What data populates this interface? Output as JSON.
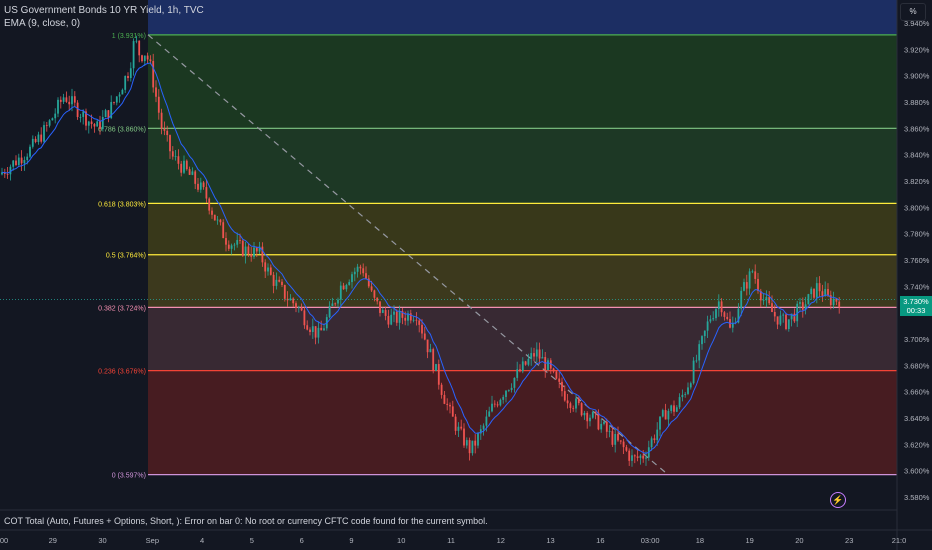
{
  "header": {
    "symbol_title": "US Government Bonds 10 YR Yield, 1h, TVC",
    "ema_label": "EMA (9, close, 0)"
  },
  "footer": {
    "indicator_message": "COT Total (Auto, Futures + Options, Short, ): Error on bar 0: No root or currency CFTC code found for the current symbol."
  },
  "price_scale": {
    "unit_label": "%"
  },
  "last_price": {
    "value": "3.730%",
    "countdown": "00:33"
  },
  "icons": {
    "alert": "lightning-icon"
  },
  "colors": {
    "background": "#131722",
    "up": "#26a69a",
    "down": "#ef5350",
    "ema": "#2962ff",
    "last_price_tag": "#089981"
  },
  "chart_data": {
    "type": "candlestick",
    "title": "US Government Bonds 10 YR Yield, 1h, TVC",
    "y_unit": "%",
    "ylim": [
      3.57,
      3.945
    ],
    "y_ticks": [
      "3.940%",
      "3.920%",
      "3.900%",
      "3.880%",
      "3.860%",
      "3.840%",
      "3.820%",
      "3.800%",
      "3.780%",
      "3.760%",
      "3.740%",
      "3.720%",
      "3.700%",
      "3.680%",
      "3.660%",
      "3.640%",
      "3.620%",
      "3.600%",
      "3.580%"
    ],
    "x_ticks": [
      ":00",
      "29",
      "30",
      "Sep",
      "4",
      "5",
      "6",
      "9",
      "10",
      "11",
      "12",
      "13",
      "16",
      "03:00",
      "18",
      "19",
      "20",
      "23",
      "21:0"
    ],
    "fib_levels": [
      {
        "label": "1 (3.931%)",
        "value": 3.931,
        "color": "#4caf50"
      },
      {
        "label": "0.786 (3.860%)",
        "value": 3.86,
        "color": "#81c784"
      },
      {
        "label": "0.618 (3.803%)",
        "value": 3.803,
        "color": "#ffeb3b"
      },
      {
        "label": "0.5 (3.764%)",
        "value": 3.764,
        "color": "#ffeb3b"
      },
      {
        "label": "0.382 (3.724%)",
        "value": 3.724,
        "color": "#f48fb1"
      },
      {
        "label": "0.236 (3.676%)",
        "value": 3.676,
        "color": "#f44336"
      },
      {
        "label": "0 (3.597%)",
        "value": 3.597,
        "color": "#ce93d8"
      }
    ],
    "price_path": [
      [
        0,
        3.825
      ],
      [
        3,
        3.835
      ],
      [
        6,
        3.845
      ],
      [
        9,
        3.862
      ],
      [
        12,
        3.885
      ],
      [
        15,
        3.872
      ],
      [
        18,
        3.86
      ],
      [
        21,
        3.878
      ],
      [
        24,
        3.905
      ],
      [
        25,
        3.928
      ],
      [
        26,
        3.915
      ],
      [
        27,
        3.918
      ],
      [
        28,
        3.905
      ],
      [
        30,
        3.86
      ],
      [
        32,
        3.838
      ],
      [
        34,
        3.83
      ],
      [
        36,
        3.82
      ],
      [
        38,
        3.81
      ],
      [
        40,
        3.79
      ],
      [
        42,
        3.775
      ],
      [
        45,
        3.768
      ],
      [
        48,
        3.765
      ],
      [
        50,
        3.748
      ],
      [
        53,
        3.732
      ],
      [
        55,
        3.725
      ],
      [
        57,
        3.712
      ],
      [
        59,
        3.702
      ],
      [
        61,
        3.72
      ],
      [
        63,
        3.74
      ],
      [
        65,
        3.75
      ],
      [
        67,
        3.755
      ],
      [
        69,
        3.73
      ],
      [
        71,
        3.718
      ],
      [
        73,
        3.715
      ],
      [
        75,
        3.718
      ],
      [
        77,
        3.72
      ],
      [
        79,
        3.695
      ],
      [
        81,
        3.67
      ],
      [
        83,
        3.645
      ],
      [
        85,
        3.628
      ],
      [
        87,
        3.615
      ],
      [
        89,
        3.63
      ],
      [
        91,
        3.648
      ],
      [
        93,
        3.66
      ],
      [
        95,
        3.67
      ],
      [
        97,
        3.68
      ],
      [
        99,
        3.69
      ],
      [
        101,
        3.68
      ],
      [
        103,
        3.665
      ],
      [
        105,
        3.655
      ],
      [
        107,
        3.648
      ],
      [
        109,
        3.642
      ],
      [
        111,
        3.635
      ],
      [
        113,
        3.625
      ],
      [
        115,
        3.618
      ],
      [
        117,
        3.608
      ],
      [
        119,
        3.612
      ],
      [
        121,
        3.628
      ],
      [
        123,
        3.645
      ],
      [
        125,
        3.648
      ],
      [
        127,
        3.665
      ],
      [
        129,
        3.688
      ],
      [
        131,
        3.715
      ],
      [
        133,
        3.73
      ],
      [
        135,
        3.705
      ],
      [
        137,
        3.735
      ],
      [
        139,
        3.752
      ],
      [
        141,
        3.73
      ],
      [
        143,
        3.718
      ],
      [
        145,
        3.712
      ],
      [
        147,
        3.72
      ],
      [
        149,
        3.728
      ],
      [
        151,
        3.74
      ],
      [
        153,
        3.73
      ],
      [
        155,
        3.73
      ]
    ],
    "last_value": 3.73
  }
}
